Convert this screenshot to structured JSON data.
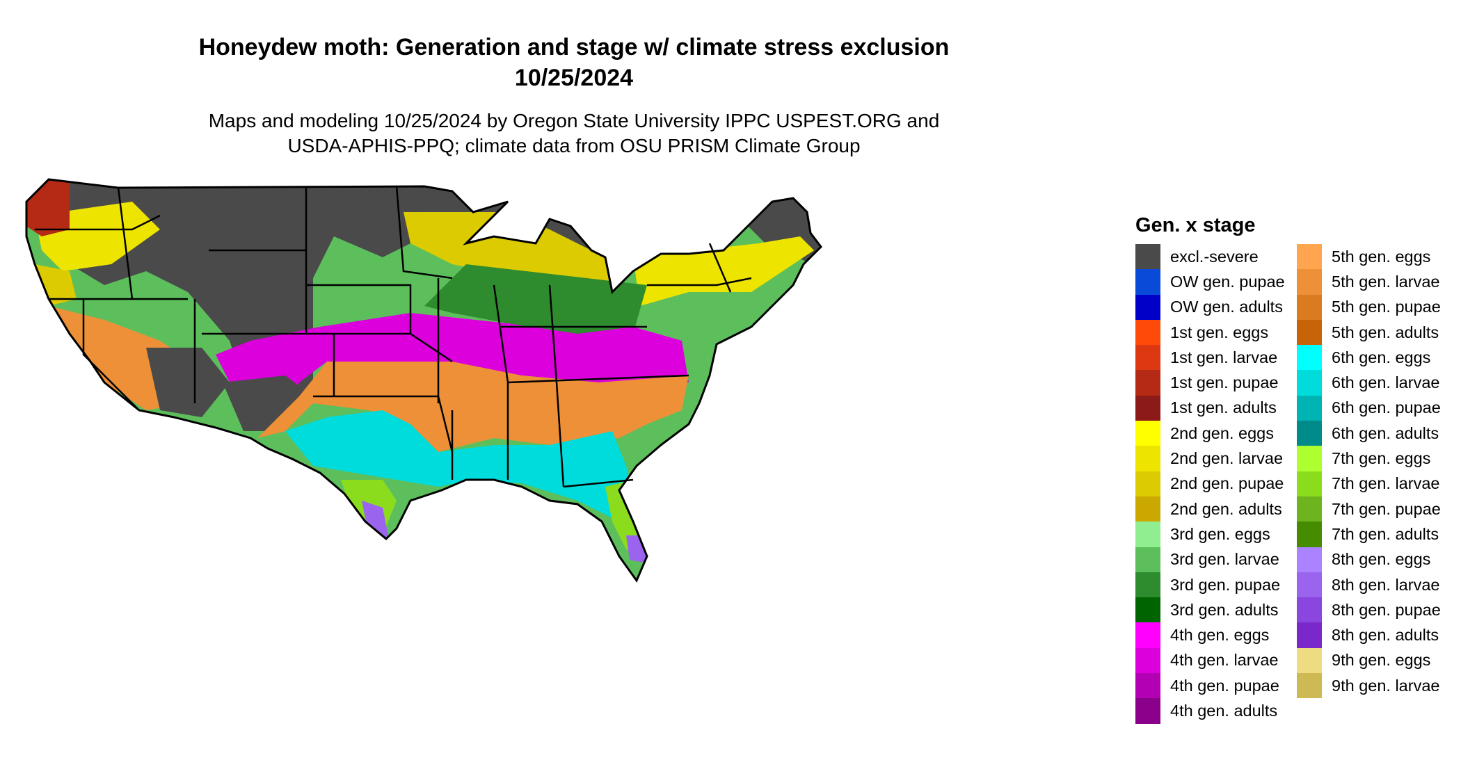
{
  "title": {
    "line1": "Honeydew moth: Generation and stage w/ climate stress exclusion",
    "line2": "10/25/2024",
    "subtitle_line1": "Maps and modeling 10/25/2024 by Oregon State University IPPC USPEST.ORG and",
    "subtitle_line2": "USDA-APHIS-PPQ; climate data from OSU PRISM Climate Group"
  },
  "legend": {
    "title": "Gen. x stage",
    "column1": [
      {
        "label": "excl.-severe",
        "color": "#4a4a4a"
      },
      {
        "label": "OW gen. pupae",
        "color": "#0a4ad8"
      },
      {
        "label": "OW gen. adults",
        "color": "#0000c8"
      },
      {
        "label": "1st gen. eggs",
        "color": "#ff4a0a"
      },
      {
        "label": "1st gen. larvae",
        "color": "#dc3812"
      },
      {
        "label": "1st gen. pupae",
        "color": "#b42a14"
      },
      {
        "label": "1st gen. adults",
        "color": "#8c1a18"
      },
      {
        "label": "2nd gen. eggs",
        "color": "#ffff00"
      },
      {
        "label": "2nd gen. larvae",
        "color": "#ede400"
      },
      {
        "label": "2nd gen. pupae",
        "color": "#dccb00"
      },
      {
        "label": "2nd gen. adults",
        "color": "#cba800"
      },
      {
        "label": "3rd gen. eggs",
        "color": "#90ee90"
      },
      {
        "label": "3rd gen. larvae",
        "color": "#5cbf5c"
      },
      {
        "label": "3rd gen. pupae",
        "color": "#2e8b2e"
      },
      {
        "label": "3rd gen. adults",
        "color": "#006400"
      },
      {
        "label": "4th gen. eggs",
        "color": "#ff00ff"
      },
      {
        "label": "4th gen. larvae",
        "color": "#dc00dc"
      },
      {
        "label": "4th gen. pupae",
        "color": "#b400b4"
      },
      {
        "label": "4th gen. adults",
        "color": "#8b008b"
      }
    ],
    "column2": [
      {
        "label": "5th gen. eggs",
        "color": "#ffa54f"
      },
      {
        "label": "5th gen. larvae",
        "color": "#ee9038"
      },
      {
        "label": "5th gen. pupae",
        "color": "#db7b20"
      },
      {
        "label": "5th gen. adults",
        "color": "#c86408"
      },
      {
        "label": "6th gen. eggs",
        "color": "#00ffff"
      },
      {
        "label": "6th gen. larvae",
        "color": "#00dcdc"
      },
      {
        "label": "6th gen. pupae",
        "color": "#00b4b4"
      },
      {
        "label": "6th gen. adults",
        "color": "#008b8b"
      },
      {
        "label": "7th gen. eggs",
        "color": "#adff2f"
      },
      {
        "label": "7th gen. larvae",
        "color": "#8cdc1e"
      },
      {
        "label": "7th gen. pupae",
        "color": "#6eb41e"
      },
      {
        "label": "7th gen. adults",
        "color": "#468c00"
      },
      {
        "label": "8th gen. eggs",
        "color": "#ab82ff"
      },
      {
        "label": "8th gen. larvae",
        "color": "#9a64ee"
      },
      {
        "label": "8th gen. pupae",
        "color": "#8a46de"
      },
      {
        "label": "8th gen. adults",
        "color": "#7a28cc"
      },
      {
        "label": "9th gen. eggs",
        "color": "#eedc82"
      },
      {
        "label": "9th gen. larvae",
        "color": "#cdba55"
      }
    ]
  }
}
